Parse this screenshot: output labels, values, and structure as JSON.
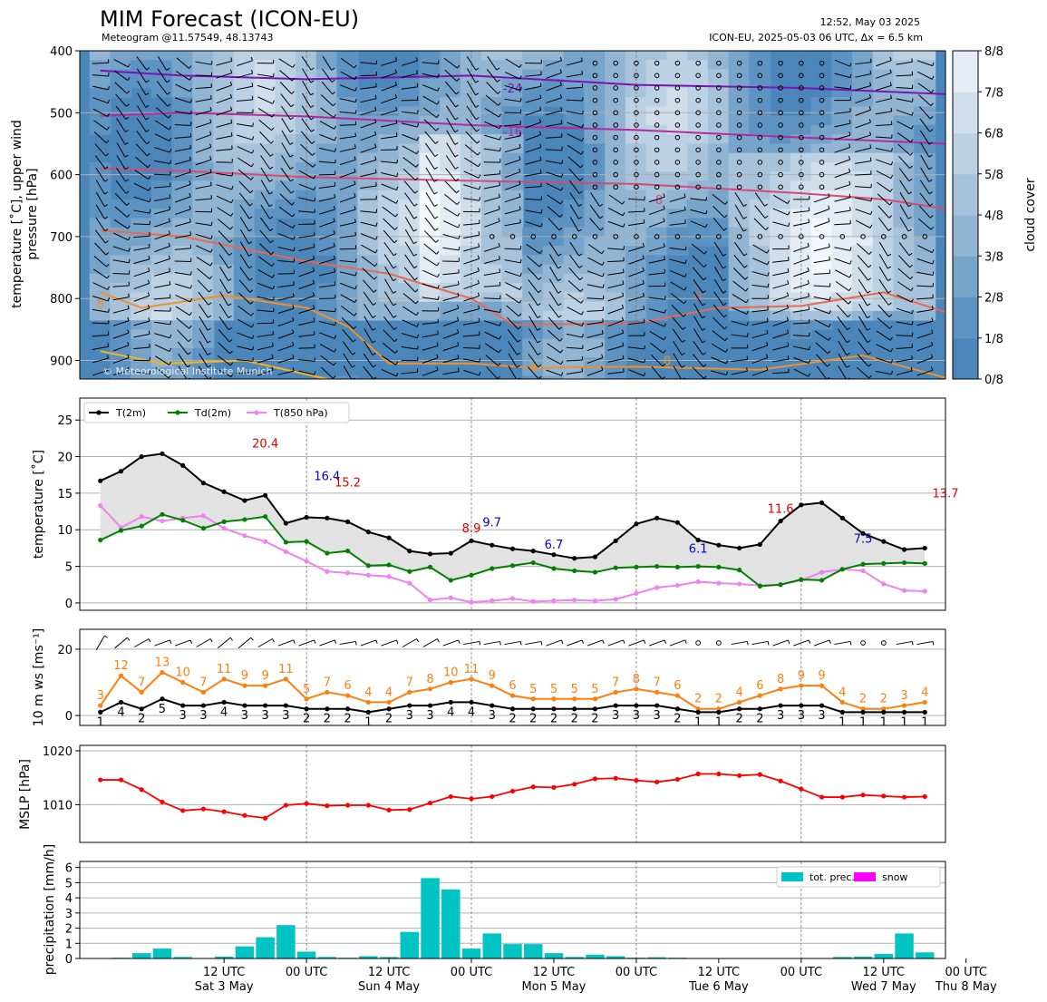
{
  "header": {
    "title": "MIM Forecast (ICON-EU)",
    "subtitle": "Meteogram @11.57549, 48.13743",
    "timestamp": "12:52, May 03 2025",
    "model_info": "ICON-EU, 2025-05-03 06 UTC, Δx = 6.5 km",
    "copyright": "© Meteorological Institute Munich"
  },
  "time_axis": {
    "x_range": [
      -14,
      70
    ],
    "ticks": [
      {
        "t": 0,
        "label": "12 UTC",
        "day": "Sat 3 May"
      },
      {
        "t": 8,
        "label": "00 UTC"
      },
      {
        "t": 16,
        "label": "12 UTC",
        "day": "Sun 4 May"
      },
      {
        "t": 24,
        "label": "00 UTC"
      },
      {
        "t": 32,
        "label": "12 UTC",
        "day": "Mon 5 May"
      },
      {
        "t": 40,
        "label": "00 UTC"
      },
      {
        "t": 48,
        "label": "12 UTC",
        "day": "Tue 6 May"
      },
      {
        "t": 56,
        "label": "00 UTC"
      },
      {
        "t": 64,
        "label": "12 UTC",
        "day": "Wed 7 May"
      },
      {
        "t": 72,
        "label": "00 UTC",
        "day": "Thu 8 May"
      }
    ],
    "midnights": [
      8,
      24,
      40,
      56,
      72
    ]
  },
  "chart_data": [
    {
      "type": "heatmap",
      "name": "upper-air",
      "ylabel": "temperature [˚C], upper wind\npressure [hPa]",
      "ylim": [
        930,
        400
      ],
      "yticks": [
        400,
        500,
        600,
        700,
        800,
        900
      ],
      "colorbar": {
        "label": "cloud cover",
        "ticks": [
          "0/8",
          "1/8",
          "2/8",
          "3/8",
          "4/8",
          "5/8",
          "6/8",
          "7/8",
          "8/8"
        ],
        "colors": [
          "#4a86ba",
          "#5d93c2",
          "#76a4ca",
          "#91b5d3",
          "#a7c3dc",
          "#bcd1e4",
          "#d0deeb",
          "#e4edf5",
          "#f4f8fc"
        ]
      },
      "isotherms": [
        {
          "label": "-24",
          "color": "#7b14b4",
          "labels_at": [
            {
              "t": 28,
              "p": 460
            }
          ]
        },
        {
          "label": "-16",
          "color": "#b52aa0",
          "labels_at": [
            {
              "t": 28,
              "p": 530
            }
          ]
        },
        {
          "label": "-8",
          "color": "#d64a74",
          "labels_at": [
            {
              "t": 42,
              "p": 640
            }
          ]
        },
        {
          "label": "0",
          "color": "#e76a52",
          "labels_at": [
            {
              "t": 46,
              "p": 795
            }
          ]
        },
        {
          "label": "8",
          "color": "#f0902c",
          "labels_at": [
            {
              "t": -12,
              "p": 808
            },
            {
              "t": 30,
              "p": 912
            },
            {
              "t": 43,
              "p": 900
            }
          ]
        },
        {
          "label": "16",
          "color": "#f6b419",
          "labels_at": []
        }
      ]
    },
    {
      "type": "line",
      "name": "temperature",
      "ylabel": "temperature [˚C]",
      "ylim": [
        -1,
        28
      ],
      "yticks": [
        0,
        5,
        10,
        15,
        20,
        25
      ],
      "legend": "top-left",
      "series": [
        {
          "name": "T(2m)",
          "color": "#000000",
          "values": [
            16.7,
            18,
            20,
            20.4,
            18.8,
            16.4,
            15.2,
            14,
            14.7,
            10.9,
            11.7,
            11.6,
            11.1,
            9.7,
            8.9,
            7.1,
            6.7,
            6.8,
            8.5,
            7.9,
            7.4,
            7.1,
            6.6,
            6.1,
            6.3,
            8.5,
            10.8,
            11.6,
            11,
            8.6,
            7.9,
            7.5,
            8,
            11.2,
            13.4,
            13.7,
            11.6,
            9.5,
            8.4,
            7.3,
            7.5
          ]
        },
        {
          "name": "Td(2m)",
          "color": "#008000",
          "values": [
            8.6,
            9.9,
            10.5,
            12.1,
            11.3,
            10.2,
            11.1,
            11.4,
            11.8,
            8.3,
            8.4,
            6.8,
            7.1,
            5.1,
            5.2,
            4.3,
            4.9,
            3.1,
            3.8,
            4.7,
            5.1,
            5.5,
            4.7,
            4.4,
            4.2,
            4.8,
            4.9,
            5,
            4.9,
            5,
            4.9,
            4.5,
            2.3,
            2.5,
            3.2,
            3.1,
            4.6,
            5.3,
            5.4,
            5.5,
            5.4
          ]
        },
        {
          "name": "T(850 hPa)",
          "color": "#ee82ee",
          "values": [
            13.3,
            10.3,
            11.8,
            11.2,
            11.6,
            11.9,
            10.2,
            9.2,
            8.4,
            7,
            5.7,
            4.3,
            4.1,
            3.8,
            3.6,
            2.7,
            0.4,
            0.7,
            0.1,
            0.3,
            0.6,
            0.2,
            0.3,
            0.4,
            0.3,
            0.5,
            1.3,
            2.1,
            2.4,
            2.9,
            2.7,
            2.6,
            2.4,
            2.5,
            3.1,
            4.2,
            4.6,
            4.4,
            2.6,
            1.7,
            1.6
          ]
        }
      ],
      "annotations": [
        {
          "t": 4,
          "text": "20.4",
          "color": "#e00000",
          "value": 20.4,
          "dy": 7
        },
        {
          "t": 10,
          "text": "16.4",
          "color": "#0000cc",
          "value": 16.4,
          "dy": 3
        },
        {
          "t": 12,
          "text": "15.2",
          "color": "#e00000",
          "value": 15.2,
          "dy": 6
        },
        {
          "t": 26,
          "text": "9.7",
          "color": "#0000cc",
          "value": 9.7,
          "dy": 6
        },
        {
          "t": 24,
          "text": "8.9",
          "color": "#e00000",
          "value": 8.9,
          "dy": 6
        },
        {
          "t": 32,
          "text": "6.7",
          "color": "#0000cc",
          "value": 6.7,
          "dy": 6
        },
        {
          "t": 46,
          "text": "6.1",
          "color": "#0000cc",
          "value": 6.1,
          "dy": 6
        },
        {
          "t": 54,
          "text": "11.6",
          "color": "#e00000",
          "value": 11.6,
          "dy": 6
        },
        {
          "t": 62,
          "text": "7.5",
          "color": "#0000cc",
          "value": 7.5,
          "dy": 6
        },
        {
          "t": 70,
          "text": "13.7",
          "color": "#e00000",
          "value": 13.7,
          "dy": 6
        }
      ]
    },
    {
      "type": "line",
      "name": "wind",
      "ylabel": "10 m ws [ms⁻¹]",
      "ylim": [
        -3,
        26
      ],
      "yticks": [
        0,
        20
      ],
      "series": [
        {
          "name": "",
          "color": "#ff7f0e",
          "values": [
            3,
            12,
            7,
            13,
            10,
            7,
            11,
            9,
            9,
            11,
            5,
            7,
            6,
            4,
            4,
            7,
            8,
            10,
            11,
            9,
            6,
            5,
            5,
            5,
            5,
            7,
            8,
            7,
            6,
            2,
            2,
            4,
            6,
            8,
            9,
            9,
            4,
            2,
            2,
            3,
            4
          ],
          "labels": [
            "3",
            "12",
            "7",
            "13",
            "10",
            "7",
            "11",
            "9",
            "9",
            "11",
            "5",
            "7",
            "6",
            "4",
            "4",
            "7",
            "8",
            "10",
            "11",
            "9",
            "6",
            "5",
            "5",
            "5",
            "5",
            "7",
            "8",
            "7",
            "6",
            "2",
            "2",
            "4",
            "6",
            "8",
            "9",
            "9",
            "4",
            "2",
            "2",
            "3",
            "4"
          ]
        },
        {
          "name": "",
          "color": "#000000",
          "values": [
            1,
            4,
            2,
            5,
            3,
            3,
            4,
            3,
            3,
            3,
            2,
            2,
            2,
            1,
            2,
            3,
            3,
            4,
            4,
            3,
            2,
            2,
            2,
            2,
            2,
            3,
            3,
            3,
            2,
            1,
            1,
            2,
            2,
            3,
            3,
            3,
            1,
            1,
            1,
            1,
            1
          ],
          "labels": [
            "1",
            "4",
            "2",
            "5",
            "3",
            "3",
            "4",
            "3",
            "3",
            "3",
            "2",
            "2",
            "2",
            "1",
            "2",
            "3",
            "3",
            "4",
            "4",
            "3",
            "2",
            "2",
            "2",
            "2",
            "2",
            "3",
            "3",
            "3",
            "2",
            "1",
            "1",
            "2",
            "2",
            "3",
            "3",
            "3",
            "1",
            "1",
            "1",
            "1",
            "1"
          ]
        }
      ],
      "barb_dirs_deg": [
        210,
        230,
        240,
        250,
        250,
        240,
        230,
        230,
        240,
        250,
        250,
        250,
        260,
        250,
        250,
        240,
        240,
        250,
        260,
        260,
        260,
        260,
        250,
        250,
        250,
        250,
        250,
        250,
        250,
        260,
        260,
        260,
        260,
        250,
        250,
        250,
        260,
        260,
        260,
        260,
        260
      ]
    },
    {
      "type": "line",
      "name": "mslp",
      "ylabel": "MSLP [hPa]",
      "ylim": [
        1003,
        1021
      ],
      "yticks": [
        1010,
        1020
      ],
      "series": [
        {
          "name": "",
          "color": "#ff0000",
          "values": [
            1014.6,
            1014.6,
            1012.8,
            1010.5,
            1008.9,
            1009.2,
            1008.7,
            1008.0,
            1007.5,
            1009.9,
            1010.2,
            1009.8,
            1009.9,
            1009.9,
            1009.0,
            1009.1,
            1010.3,
            1011.5,
            1011.1,
            1011.5,
            1012.5,
            1013.3,
            1013.2,
            1013.8,
            1014.8,
            1014.9,
            1014.5,
            1014.2,
            1014.7,
            1015.7,
            1015.7,
            1015.4,
            1015.6,
            1014.4,
            1012.9,
            1011.4,
            1011.4,
            1011.8,
            1011.6,
            1011.4,
            1011.5
          ]
        }
      ]
    },
    {
      "type": "bar",
      "name": "precipitation",
      "ylabel": "precipitation [mm/h]",
      "ylim": [
        0,
        6.4
      ],
      "yticks": [
        0,
        1,
        2,
        3,
        4,
        5,
        6
      ],
      "legend": "top-right",
      "series": [
        {
          "name": "tot. prec.",
          "color": "#00c4c4",
          "values": [
            0,
            0.05,
            0.35,
            0.65,
            0.1,
            0,
            0.12,
            0.8,
            1.4,
            2.2,
            0.45,
            0.1,
            0.05,
            0.15,
            0.1,
            1.75,
            5.3,
            4.55,
            0.65,
            1.65,
            0.95,
            0.95,
            0.35,
            0.1,
            0.25,
            0.15,
            0.05,
            0.08,
            0.05,
            0,
            0,
            0,
            0,
            0,
            0,
            0.03,
            0.1,
            0.12,
            0.3,
            1.65,
            0.4
          ]
        },
        {
          "name": "snow",
          "color": "#ff00ff",
          "values": [
            0,
            0,
            0,
            0,
            0,
            0,
            0,
            0,
            0,
            0,
            0,
            0,
            0,
            0,
            0,
            0,
            0,
            0,
            0,
            0,
            0,
            0,
            0,
            0,
            0,
            0,
            0,
            0,
            0,
            0,
            0,
            0,
            0,
            0,
            0,
            0,
            0,
            0,
            0,
            0,
            0
          ]
        }
      ]
    }
  ]
}
